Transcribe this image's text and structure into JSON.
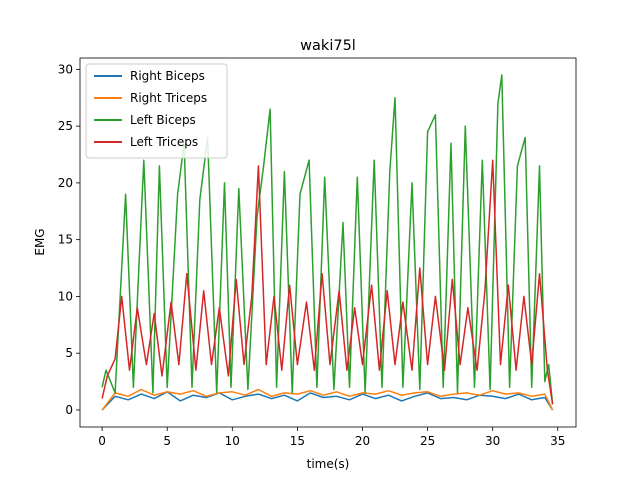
{
  "chart_data": {
    "type": "line",
    "title": "waki75l",
    "xlabel": "time(s)",
    "ylabel": "EMG",
    "xlim": [
      -1.7,
      36.4
    ],
    "ylim": [
      -1.5,
      31.0
    ],
    "xticks": [
      0,
      5,
      10,
      15,
      20,
      25,
      30,
      35
    ],
    "yticks": [
      0,
      5,
      10,
      15,
      20,
      25,
      30
    ],
    "grid": false,
    "legend_position": "top-left",
    "series": [
      {
        "name": "Right Biceps",
        "color": "#1f77b4",
        "x": [
          0.0,
          1.0,
          2.0,
          3.0,
          4.0,
          5.0,
          6.0,
          7.0,
          8.0,
          9.0,
          10.0,
          11.0,
          12.0,
          13.0,
          14.0,
          15.0,
          16.0,
          17.0,
          18.0,
          19.0,
          20.0,
          21.0,
          22.0,
          23.0,
          24.0,
          25.0,
          26.0,
          27.0,
          28.0,
          29.0,
          30.0,
          31.0,
          32.0,
          33.0,
          34.0,
          34.6
        ],
        "y": [
          0.0,
          1.2,
          0.9,
          1.4,
          1.0,
          1.6,
          0.8,
          1.3,
          1.1,
          1.5,
          0.9,
          1.2,
          1.4,
          1.0,
          1.3,
          0.8,
          1.5,
          1.1,
          1.2,
          0.9,
          1.4,
          1.0,
          1.3,
          0.8,
          1.2,
          1.5,
          1.0,
          1.1,
          0.9,
          1.3,
          1.2,
          1.0,
          1.4,
          0.9,
          1.1,
          0.0
        ]
      },
      {
        "name": "Right Triceps",
        "color": "#ff7f0e",
        "x": [
          0.0,
          1.0,
          2.0,
          3.0,
          4.0,
          5.0,
          6.0,
          7.0,
          8.0,
          9.0,
          10.0,
          11.0,
          12.0,
          13.0,
          14.0,
          15.0,
          16.0,
          17.0,
          18.0,
          19.0,
          20.0,
          21.0,
          22.0,
          23.0,
          24.0,
          25.0,
          26.0,
          27.0,
          28.0,
          29.0,
          30.0,
          31.0,
          32.0,
          33.0,
          34.0,
          34.6
        ],
        "y": [
          0.0,
          1.5,
          1.2,
          1.8,
          1.3,
          1.6,
          1.4,
          1.7,
          1.2,
          1.5,
          1.6,
          1.3,
          1.8,
          1.2,
          1.5,
          1.4,
          1.7,
          1.3,
          1.6,
          1.2,
          1.5,
          1.4,
          1.7,
          1.3,
          1.5,
          1.6,
          1.2,
          1.4,
          1.5,
          1.3,
          1.7,
          1.4,
          1.5,
          1.2,
          1.4,
          0.0
        ]
      },
      {
        "name": "Left Biceps",
        "color": "#2ca02c",
        "x": [
          0.0,
          0.3,
          1.0,
          1.8,
          2.4,
          3.2,
          3.9,
          4.4,
          5.0,
          5.8,
          6.3,
          6.9,
          7.5,
          8.1,
          8.8,
          9.4,
          9.9,
          10.5,
          11.2,
          11.9,
          12.4,
          12.9,
          13.4,
          14.0,
          14.6,
          15.2,
          15.9,
          16.5,
          17.1,
          17.8,
          18.5,
          19.0,
          19.6,
          20.2,
          20.9,
          21.5,
          22.1,
          22.5,
          23.1,
          23.8,
          24.4,
          25.0,
          25.6,
          26.2,
          26.8,
          27.3,
          27.9,
          28.6,
          29.2,
          29.8,
          30.4,
          30.7,
          31.3,
          31.9,
          32.5,
          33.0,
          33.6,
          34.0,
          34.3,
          34.6
        ],
        "y": [
          2.0,
          3.5,
          1.5,
          19.0,
          2.0,
          22.0,
          1.5,
          21.5,
          2.0,
          19.0,
          23.5,
          2.0,
          18.5,
          24.0,
          1.5,
          20.0,
          2.0,
          19.5,
          1.8,
          17.0,
          21.5,
          26.5,
          2.0,
          21.0,
          1.5,
          19.0,
          22.0,
          2.0,
          20.5,
          1.8,
          16.5,
          2.0,
          20.5,
          1.5,
          22.0,
          2.0,
          21.0,
          27.5,
          2.0,
          20.0,
          1.8,
          24.5,
          26.0,
          2.0,
          23.5,
          1.5,
          25.0,
          2.0,
          22.0,
          1.8,
          27.0,
          29.5,
          2.0,
          21.5,
          24.0,
          2.0,
          21.5,
          2.5,
          4.0,
          0.5
        ]
      },
      {
        "name": "Left Triceps",
        "color": "#d62728",
        "x": [
          0.0,
          0.4,
          1.0,
          1.5,
          2.1,
          2.7,
          3.4,
          4.0,
          4.6,
          5.3,
          5.9,
          6.5,
          7.2,
          7.8,
          8.4,
          9.0,
          9.7,
          10.3,
          10.9,
          11.5,
          12.0,
          12.6,
          13.2,
          13.8,
          14.4,
          15.0,
          15.7,
          16.3,
          16.9,
          17.5,
          18.2,
          18.8,
          19.4,
          20.0,
          20.7,
          21.3,
          21.9,
          22.5,
          23.1,
          23.8,
          24.4,
          25.0,
          25.6,
          26.3,
          26.9,
          27.5,
          28.1,
          28.8,
          29.4,
          30.0,
          30.6,
          31.2,
          31.8,
          32.4,
          33.0,
          33.6,
          34.2,
          34.6
        ],
        "y": [
          1.0,
          3.0,
          4.5,
          10.0,
          3.5,
          9.0,
          4.0,
          8.5,
          3.0,
          9.5,
          4.0,
          12.0,
          3.5,
          10.5,
          4.0,
          9.0,
          3.0,
          11.5,
          4.0,
          10.0,
          21.5,
          4.0,
          10.0,
          3.5,
          11.0,
          4.0,
          9.5,
          3.5,
          12.0,
          4.0,
          10.5,
          3.5,
          9.0,
          4.0,
          11.0,
          3.5,
          10.5,
          4.0,
          9.5,
          3.5,
          12.5,
          4.0,
          10.0,
          3.5,
          11.5,
          4.0,
          9.0,
          3.5,
          10.5,
          22.0,
          4.0,
          11.0,
          3.5,
          10.0,
          4.0,
          12.0,
          3.5,
          0.5
        ]
      }
    ]
  }
}
